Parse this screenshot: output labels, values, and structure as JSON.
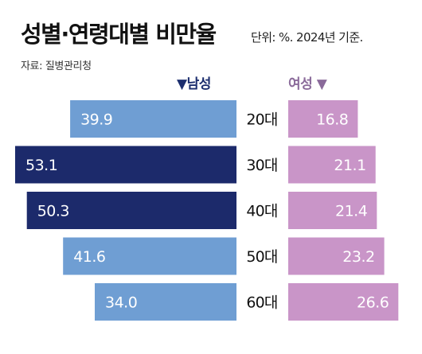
{
  "header": {
    "title": "성별·연령대별 비만율",
    "unit": "단위: %. 2024년 기준.",
    "source": "자료: 질병관리청"
  },
  "legend": {
    "male": "▼남성",
    "female": "여성 ▼"
  },
  "colors": {
    "male_light": "#6f9ed3",
    "male_dark": "#1c2a6b",
    "female": "#c995c8",
    "text": "#111111"
  },
  "chart_data": {
    "type": "bar",
    "categories": [
      "20대",
      "30대",
      "40대",
      "50대",
      "60대"
    ],
    "series": [
      {
        "name": "남성",
        "values": [
          39.9,
          53.1,
          50.3,
          41.6,
          34.0
        ],
        "highlight": [
          false,
          true,
          true,
          false,
          false
        ]
      },
      {
        "name": "여성",
        "values": [
          16.8,
          21.1,
          21.4,
          23.2,
          26.6
        ]
      }
    ],
    "labels": {
      "male": [
        "39.9",
        "53.1",
        "50.3",
        "41.6",
        "34.0"
      ],
      "female": [
        "16.8",
        "21.1",
        "21.4",
        "23.2",
        "26.6"
      ]
    },
    "orientation": "horizontal-butterfly",
    "title": "성별·연령대별 비만율",
    "grid": false,
    "legend_position": "top"
  }
}
